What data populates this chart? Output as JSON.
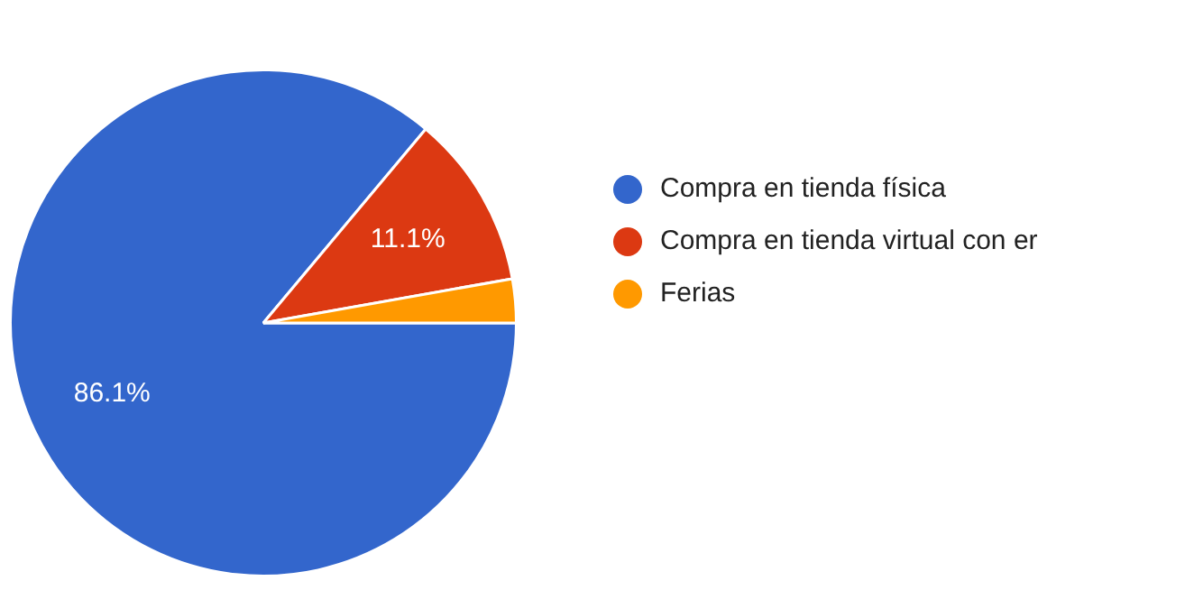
{
  "chart_data": {
    "type": "pie",
    "categories": [
      "Compra en tienda física",
      "Compra en tienda virtual con er",
      "Ferias"
    ],
    "values": [
      86.1,
      11.1,
      2.8
    ],
    "colors": [
      "#3366cc",
      "#dc3912",
      "#ff9900"
    ],
    "value_labels": [
      "86.1%",
      "11.1%",
      null
    ],
    "legend": "right"
  }
}
